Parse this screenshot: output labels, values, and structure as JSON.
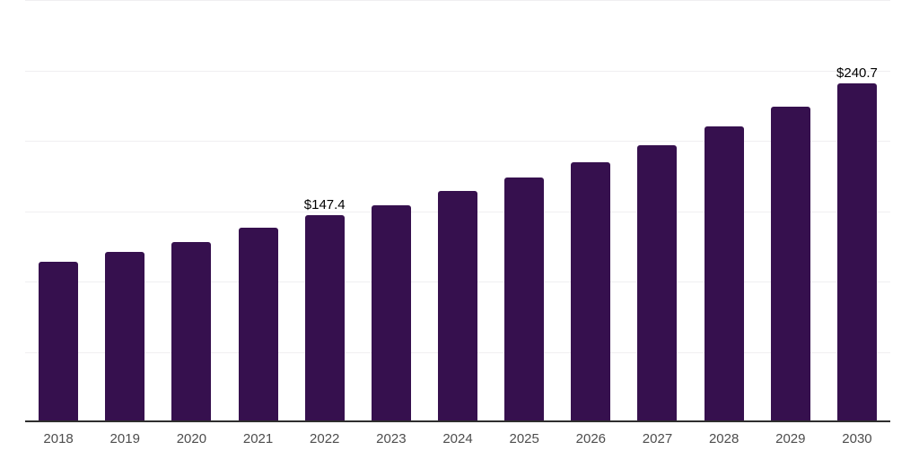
{
  "chart_data": {
    "type": "bar",
    "title": "",
    "categories": [
      "2018",
      "2019",
      "2020",
      "2021",
      "2022",
      "2023",
      "2024",
      "2025",
      "2026",
      "2027",
      "2028",
      "2029",
      "2030"
    ],
    "values": [
      114.0,
      121.0,
      128.0,
      138.2,
      147.4,
      154.4,
      164.1,
      174.0,
      184.5,
      196.6,
      210.0,
      224.3,
      240.7
    ],
    "data_labels": {
      "2022": "$147.4",
      "2030": "$240.7"
    },
    "xlabel": "",
    "ylabel": "",
    "ylim": [
      0,
      300
    ],
    "gridline_step": 50,
    "grid": true,
    "legend": false,
    "colors": {
      "bar": "#36104e",
      "gridline": "#f0eff1",
      "axis_line": "#2e2e2e",
      "tick_label": "#4d4d4d",
      "data_label": "#000000",
      "background": "#ffffff"
    }
  }
}
